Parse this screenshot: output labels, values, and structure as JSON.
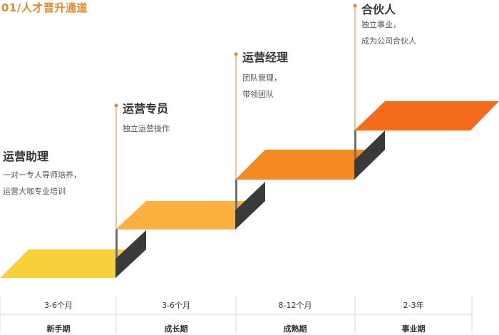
{
  "header": {
    "title": "01/人才晋升通道"
  },
  "colors": {
    "header": "#e8862a",
    "step1": "#f8d03c",
    "step2": "#fbb040",
    "step3": "#f58a22",
    "step4": "#f36b1b",
    "riser_dark": "#3a3a3a",
    "riser_mid": "#6e6e6e",
    "marker": "#f08030",
    "axis": "#d8d8d8"
  },
  "stages": [
    {
      "title": "运营助理",
      "desc": [
        "一对一专人导师培养，",
        "运营大咖专业培训"
      ],
      "period": "3-6个月",
      "phase": "新手期"
    },
    {
      "title": "运营专员",
      "desc": [
        "独立运营操作"
      ],
      "period": "3-6个月",
      "phase": "成长期"
    },
    {
      "title": "运营经理",
      "desc": [
        "团队管理，",
        "带领团队"
      ],
      "period": "8-12个月",
      "phase": "成熟期"
    },
    {
      "title": "合伙人",
      "desc": [
        "独立事业，",
        "成为公司合伙人"
      ],
      "period": "2-3年",
      "phase": "事业期"
    }
  ]
}
